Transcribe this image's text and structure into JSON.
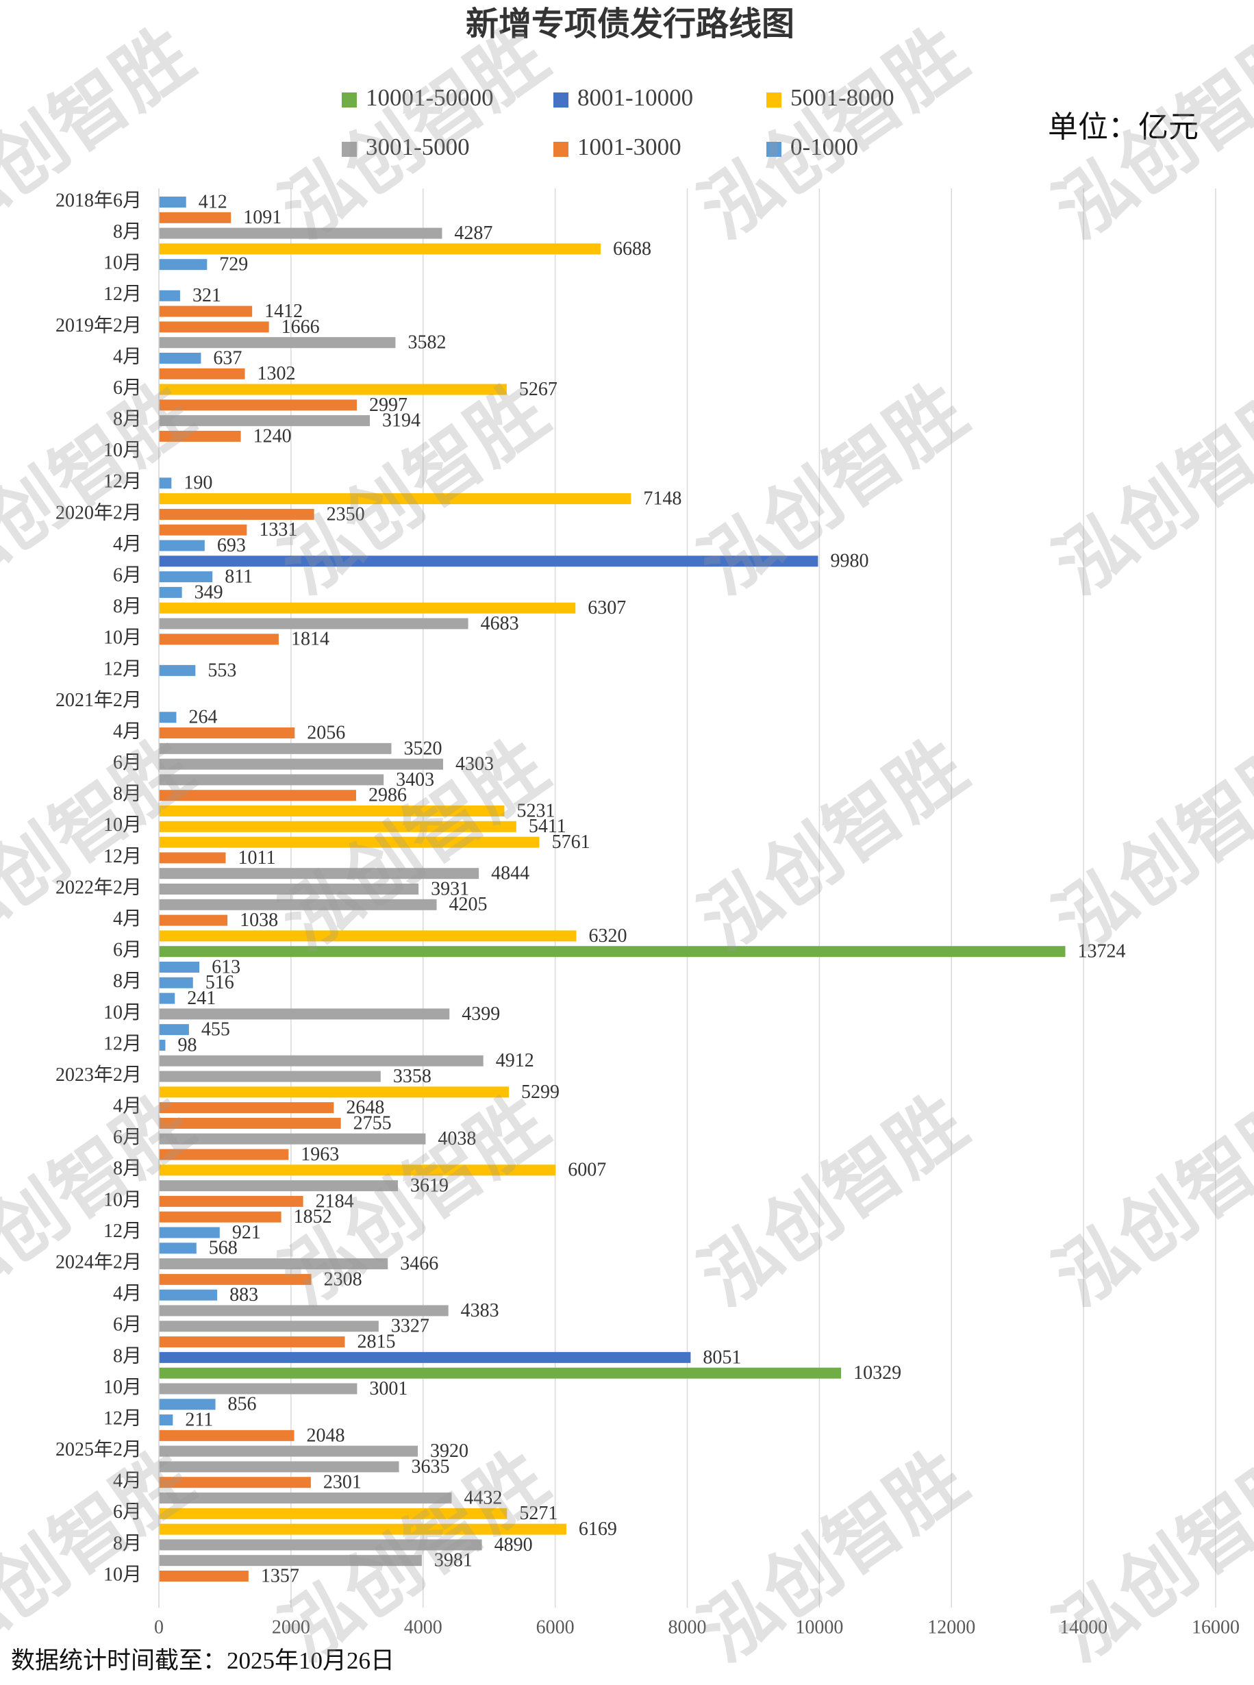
{
  "chart_data": {
    "type": "bar",
    "orientation": "horizontal",
    "title": "新增专项债发行路线图",
    "unit_label": "单位：亿元",
    "note": "数据统计时间截至：2025年10月26日",
    "watermark": "泓创智胜",
    "legend": "top",
    "grid": true,
    "xlim": [
      0,
      16000
    ],
    "xticks": [
      0,
      2000,
      4000,
      6000,
      8000,
      10000,
      12000,
      14000,
      16000
    ],
    "categories": [
      "2018年6月",
      null,
      "8月",
      null,
      "10月",
      null,
      "12月",
      null,
      "2019年2月",
      null,
      "4月",
      null,
      "6月",
      null,
      "8月",
      null,
      "10月",
      null,
      "12月",
      null,
      "2020年2月",
      null,
      "4月",
      null,
      "6月",
      null,
      "8月",
      null,
      "10月",
      null,
      "12月",
      null,
      "2021年2月",
      null,
      "4月",
      null,
      "6月",
      null,
      "8月",
      null,
      "10月",
      null,
      "12月",
      null,
      "2022年2月",
      null,
      "4月",
      null,
      "6月",
      null,
      "8月",
      null,
      "10月",
      null,
      "12月",
      null,
      "2023年2月",
      null,
      "4月",
      null,
      "6月",
      null,
      "8月",
      null,
      "10月",
      null,
      "12月",
      null,
      "2024年2月",
      null,
      "4月",
      null,
      "6月",
      null,
      "8月",
      null,
      "10月",
      null,
      "12月",
      null,
      "2025年2月",
      null,
      "4月",
      null,
      "6月",
      null,
      "8月",
      null,
      "10月"
    ],
    "series": [
      {
        "name": "10001-50000",
        "color": "#70ad47",
        "values": [
          null,
          null,
          null,
          null,
          null,
          null,
          null,
          null,
          null,
          null,
          null,
          null,
          null,
          null,
          null,
          null,
          null,
          null,
          null,
          null,
          null,
          null,
          null,
          null,
          null,
          null,
          null,
          null,
          null,
          null,
          null,
          null,
          null,
          null,
          null,
          null,
          null,
          null,
          null,
          null,
          null,
          null,
          null,
          null,
          null,
          null,
          null,
          null,
          13724,
          null,
          null,
          null,
          null,
          null,
          null,
          null,
          null,
          null,
          null,
          null,
          null,
          null,
          null,
          null,
          null,
          null,
          null,
          null,
          null,
          null,
          null,
          null,
          null,
          null,
          null,
          10329,
          null,
          null,
          null,
          null,
          null,
          null,
          null,
          null,
          null,
          null,
          null,
          null,
          null
        ]
      },
      {
        "name": "8001-10000",
        "color": "#4472c4",
        "values": [
          null,
          null,
          null,
          null,
          null,
          null,
          null,
          null,
          null,
          null,
          null,
          null,
          null,
          null,
          null,
          null,
          null,
          null,
          null,
          null,
          null,
          null,
          null,
          9980,
          null,
          null,
          null,
          null,
          null,
          null,
          null,
          null,
          null,
          null,
          null,
          null,
          null,
          null,
          null,
          null,
          null,
          null,
          null,
          null,
          null,
          null,
          null,
          null,
          null,
          null,
          null,
          null,
          null,
          null,
          null,
          null,
          null,
          null,
          null,
          null,
          null,
          null,
          null,
          null,
          null,
          null,
          null,
          null,
          null,
          null,
          null,
          null,
          null,
          null,
          8051,
          null,
          null,
          null,
          null,
          null,
          null,
          null,
          null,
          null,
          null,
          null,
          null,
          null,
          null
        ]
      },
      {
        "name": "5001-8000",
        "color": "#ffc000",
        "values": [
          null,
          null,
          null,
          6688,
          null,
          null,
          null,
          null,
          null,
          null,
          null,
          null,
          5267,
          null,
          null,
          null,
          null,
          null,
          null,
          7148,
          null,
          null,
          null,
          null,
          null,
          null,
          6307,
          null,
          null,
          null,
          null,
          null,
          null,
          null,
          null,
          null,
          null,
          null,
          null,
          5231,
          5411,
          5761,
          null,
          null,
          null,
          null,
          null,
          6320,
          null,
          null,
          null,
          null,
          null,
          null,
          null,
          null,
          null,
          5299,
          null,
          null,
          null,
          null,
          6007,
          null,
          null,
          null,
          null,
          null,
          null,
          null,
          null,
          null,
          null,
          null,
          null,
          null,
          null,
          null,
          null,
          null,
          null,
          null,
          null,
          null,
          5271,
          6169,
          null,
          null,
          null
        ]
      },
      {
        "name": "3001-5000",
        "color": "#a5a5a5",
        "values": [
          null,
          null,
          4287,
          null,
          null,
          null,
          null,
          null,
          null,
          3582,
          null,
          null,
          null,
          null,
          3194,
          null,
          null,
          null,
          null,
          null,
          null,
          null,
          null,
          null,
          null,
          null,
          null,
          4683,
          null,
          null,
          null,
          null,
          null,
          null,
          null,
          3520,
          4303,
          3403,
          null,
          null,
          null,
          null,
          null,
          4844,
          3931,
          4205,
          null,
          null,
          null,
          null,
          null,
          null,
          4399,
          null,
          null,
          4912,
          3358,
          null,
          null,
          null,
          4038,
          null,
          null,
          3619,
          null,
          null,
          null,
          null,
          3466,
          null,
          null,
          4383,
          3327,
          null,
          null,
          null,
          3001,
          null,
          null,
          null,
          3920,
          3635,
          null,
          4432,
          null,
          null,
          4890,
          3981,
          null
        ]
      },
      {
        "name": "1001-3000",
        "color": "#ed7d31",
        "values": [
          null,
          1091,
          null,
          null,
          null,
          null,
          null,
          1412,
          1666,
          null,
          null,
          1302,
          null,
          2997,
          null,
          1240,
          null,
          null,
          null,
          null,
          2350,
          1331,
          null,
          null,
          null,
          null,
          null,
          null,
          1814,
          null,
          null,
          null,
          null,
          null,
          2056,
          null,
          null,
          null,
          2986,
          null,
          null,
          null,
          1011,
          null,
          null,
          null,
          1038,
          null,
          null,
          null,
          null,
          null,
          null,
          null,
          null,
          null,
          null,
          null,
          2648,
          2755,
          null,
          1963,
          null,
          null,
          2184,
          1852,
          null,
          null,
          null,
          2308,
          null,
          null,
          null,
          2815,
          null,
          null,
          null,
          null,
          null,
          2048,
          null,
          null,
          2301,
          null,
          null,
          null,
          null,
          null,
          1357
        ]
      },
      {
        "name": "0-1000",
        "color": "#5b9bd5",
        "values": [
          412,
          null,
          null,
          null,
          729,
          null,
          321,
          null,
          null,
          null,
          637,
          null,
          null,
          null,
          null,
          null,
          null,
          null,
          190,
          null,
          null,
          null,
          693,
          null,
          811,
          349,
          null,
          null,
          null,
          null,
          553,
          null,
          null,
          264,
          null,
          null,
          null,
          null,
          null,
          null,
          null,
          null,
          null,
          null,
          null,
          null,
          null,
          null,
          null,
          613,
          516,
          241,
          null,
          455,
          98,
          null,
          null,
          null,
          null,
          null,
          null,
          null,
          null,
          null,
          null,
          null,
          921,
          568,
          null,
          null,
          883,
          null,
          null,
          null,
          null,
          null,
          null,
          856,
          211,
          null,
          null,
          null,
          null,
          null,
          null,
          null,
          null,
          null,
          null
        ]
      }
    ]
  }
}
